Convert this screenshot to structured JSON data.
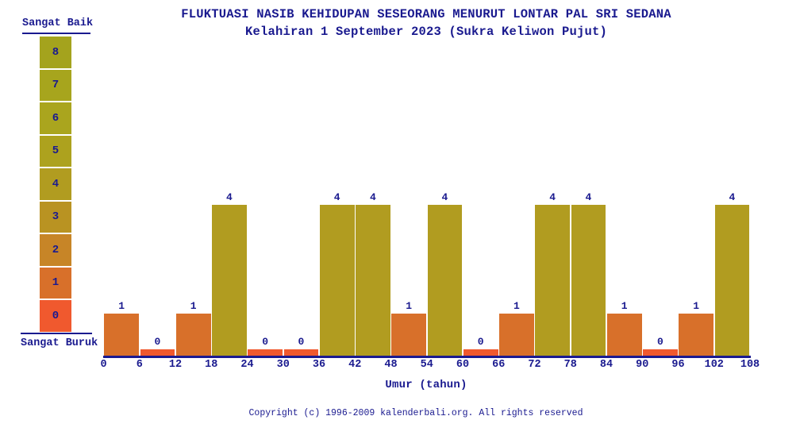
{
  "chart_data": {
    "type": "bar",
    "title": "FLUKTUASI NASIB KEHIDUPAN SESEORANG MENURUT LONTAR PAL SRI SEDANA",
    "subtitle": "Kelahiran 1 September 2023 (Sukra Keliwon Pujut)",
    "xlabel": "Umur (tahun)",
    "categories": [
      "0-6",
      "6-12",
      "12-18",
      "18-24",
      "24-30",
      "30-36",
      "36-42",
      "42-48",
      "48-54",
      "54-60",
      "60-66",
      "66-72",
      "72-78",
      "78-84",
      "84-90",
      "90-96",
      "96-102",
      "102-108"
    ],
    "values": [
      1,
      0,
      1,
      4,
      0,
      0,
      4,
      4,
      1,
      4,
      0,
      1,
      4,
      4,
      1,
      0,
      1,
      4
    ],
    "x_tick_labels": [
      "0",
      "6",
      "12",
      "18",
      "24",
      "30",
      "36",
      "42",
      "48",
      "54",
      "60",
      "66",
      "72",
      "78",
      "84",
      "90",
      "96",
      "102",
      "108"
    ],
    "bin_width_years": 6,
    "ylim": [
      0,
      8
    ],
    "grid": false,
    "legend": null,
    "value_labels_shown": true,
    "bar_colors_by_value": {
      "0": "#F0592E",
      "1": "#D8702A",
      "4": "#B19C20"
    }
  },
  "scale": {
    "top_label": "Sangat Baik",
    "bottom_label": "Sangat Buruk",
    "levels": [
      {
        "value": "8",
        "color": "#A4A31D"
      },
      {
        "value": "7",
        "color": "#A7A51D"
      },
      {
        "value": "6",
        "color": "#AAA51E"
      },
      {
        "value": "5",
        "color": "#ADA21E"
      },
      {
        "value": "4",
        "color": "#B19C20"
      },
      {
        "value": "3",
        "color": "#B99322"
      },
      {
        "value": "2",
        "color": "#C78527"
      },
      {
        "value": "1",
        "color": "#D8702A"
      },
      {
        "value": "0",
        "color": "#F0592E"
      }
    ]
  },
  "footer": {
    "copyright": "Copyright (c) 1996-2009 kalenderbali.org. All rights reserved"
  },
  "colors": {
    "text": "#1A1A8F",
    "axis": "#1A1A8F",
    "background": "#FFFFFF"
  }
}
